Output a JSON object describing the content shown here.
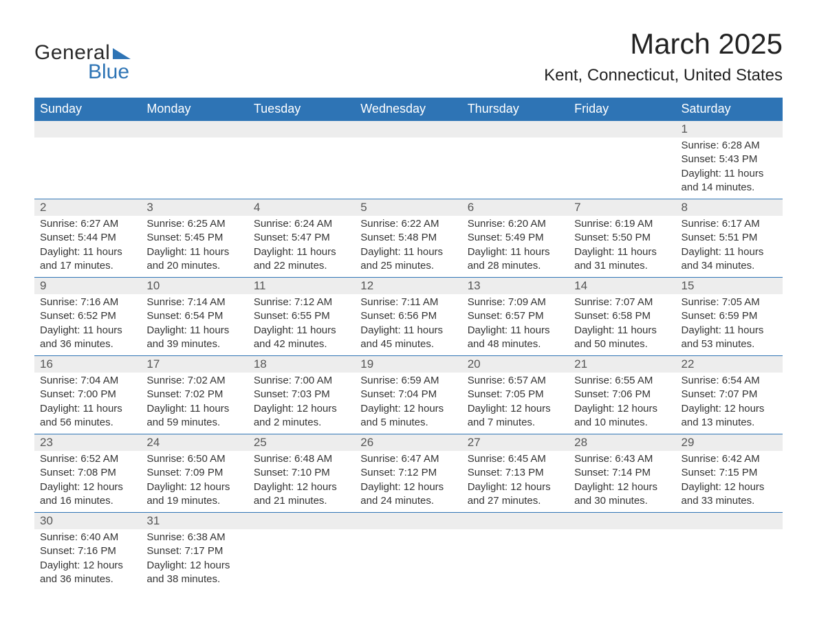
{
  "logo": {
    "general": "General",
    "blue": "Blue"
  },
  "title": "March 2025",
  "location": "Kent, Connecticut, United States",
  "headers": [
    "Sunday",
    "Monday",
    "Tuesday",
    "Wednesday",
    "Thursday",
    "Friday",
    "Saturday"
  ],
  "colors": {
    "header_bg": "#2e74b5",
    "header_text": "#ffffff",
    "daynum_bg": "#ededed",
    "border": "#2e74b5",
    "logo_blue": "#2e74b5"
  },
  "weeks": [
    [
      {
        "day": "",
        "sunrise": "",
        "sunset": "",
        "daylight": ""
      },
      {
        "day": "",
        "sunrise": "",
        "sunset": "",
        "daylight": ""
      },
      {
        "day": "",
        "sunrise": "",
        "sunset": "",
        "daylight": ""
      },
      {
        "day": "",
        "sunrise": "",
        "sunset": "",
        "daylight": ""
      },
      {
        "day": "",
        "sunrise": "",
        "sunset": "",
        "daylight": ""
      },
      {
        "day": "",
        "sunrise": "",
        "sunset": "",
        "daylight": ""
      },
      {
        "day": "1",
        "sunrise": "Sunrise: 6:28 AM",
        "sunset": "Sunset: 5:43 PM",
        "daylight": "Daylight: 11 hours and 14 minutes."
      }
    ],
    [
      {
        "day": "2",
        "sunrise": "Sunrise: 6:27 AM",
        "sunset": "Sunset: 5:44 PM",
        "daylight": "Daylight: 11 hours and 17 minutes."
      },
      {
        "day": "3",
        "sunrise": "Sunrise: 6:25 AM",
        "sunset": "Sunset: 5:45 PM",
        "daylight": "Daylight: 11 hours and 20 minutes."
      },
      {
        "day": "4",
        "sunrise": "Sunrise: 6:24 AM",
        "sunset": "Sunset: 5:47 PM",
        "daylight": "Daylight: 11 hours and 22 minutes."
      },
      {
        "day": "5",
        "sunrise": "Sunrise: 6:22 AM",
        "sunset": "Sunset: 5:48 PM",
        "daylight": "Daylight: 11 hours and 25 minutes."
      },
      {
        "day": "6",
        "sunrise": "Sunrise: 6:20 AM",
        "sunset": "Sunset: 5:49 PM",
        "daylight": "Daylight: 11 hours and 28 minutes."
      },
      {
        "day": "7",
        "sunrise": "Sunrise: 6:19 AM",
        "sunset": "Sunset: 5:50 PM",
        "daylight": "Daylight: 11 hours and 31 minutes."
      },
      {
        "day": "8",
        "sunrise": "Sunrise: 6:17 AM",
        "sunset": "Sunset: 5:51 PM",
        "daylight": "Daylight: 11 hours and 34 minutes."
      }
    ],
    [
      {
        "day": "9",
        "sunrise": "Sunrise: 7:16 AM",
        "sunset": "Sunset: 6:52 PM",
        "daylight": "Daylight: 11 hours and 36 minutes."
      },
      {
        "day": "10",
        "sunrise": "Sunrise: 7:14 AM",
        "sunset": "Sunset: 6:54 PM",
        "daylight": "Daylight: 11 hours and 39 minutes."
      },
      {
        "day": "11",
        "sunrise": "Sunrise: 7:12 AM",
        "sunset": "Sunset: 6:55 PM",
        "daylight": "Daylight: 11 hours and 42 minutes."
      },
      {
        "day": "12",
        "sunrise": "Sunrise: 7:11 AM",
        "sunset": "Sunset: 6:56 PM",
        "daylight": "Daylight: 11 hours and 45 minutes."
      },
      {
        "day": "13",
        "sunrise": "Sunrise: 7:09 AM",
        "sunset": "Sunset: 6:57 PM",
        "daylight": "Daylight: 11 hours and 48 minutes."
      },
      {
        "day": "14",
        "sunrise": "Sunrise: 7:07 AM",
        "sunset": "Sunset: 6:58 PM",
        "daylight": "Daylight: 11 hours and 50 minutes."
      },
      {
        "day": "15",
        "sunrise": "Sunrise: 7:05 AM",
        "sunset": "Sunset: 6:59 PM",
        "daylight": "Daylight: 11 hours and 53 minutes."
      }
    ],
    [
      {
        "day": "16",
        "sunrise": "Sunrise: 7:04 AM",
        "sunset": "Sunset: 7:00 PM",
        "daylight": "Daylight: 11 hours and 56 minutes."
      },
      {
        "day": "17",
        "sunrise": "Sunrise: 7:02 AM",
        "sunset": "Sunset: 7:02 PM",
        "daylight": "Daylight: 11 hours and 59 minutes."
      },
      {
        "day": "18",
        "sunrise": "Sunrise: 7:00 AM",
        "sunset": "Sunset: 7:03 PM",
        "daylight": "Daylight: 12 hours and 2 minutes."
      },
      {
        "day": "19",
        "sunrise": "Sunrise: 6:59 AM",
        "sunset": "Sunset: 7:04 PM",
        "daylight": "Daylight: 12 hours and 5 minutes."
      },
      {
        "day": "20",
        "sunrise": "Sunrise: 6:57 AM",
        "sunset": "Sunset: 7:05 PM",
        "daylight": "Daylight: 12 hours and 7 minutes."
      },
      {
        "day": "21",
        "sunrise": "Sunrise: 6:55 AM",
        "sunset": "Sunset: 7:06 PM",
        "daylight": "Daylight: 12 hours and 10 minutes."
      },
      {
        "day": "22",
        "sunrise": "Sunrise: 6:54 AM",
        "sunset": "Sunset: 7:07 PM",
        "daylight": "Daylight: 12 hours and 13 minutes."
      }
    ],
    [
      {
        "day": "23",
        "sunrise": "Sunrise: 6:52 AM",
        "sunset": "Sunset: 7:08 PM",
        "daylight": "Daylight: 12 hours and 16 minutes."
      },
      {
        "day": "24",
        "sunrise": "Sunrise: 6:50 AM",
        "sunset": "Sunset: 7:09 PM",
        "daylight": "Daylight: 12 hours and 19 minutes."
      },
      {
        "day": "25",
        "sunrise": "Sunrise: 6:48 AM",
        "sunset": "Sunset: 7:10 PM",
        "daylight": "Daylight: 12 hours and 21 minutes."
      },
      {
        "day": "26",
        "sunrise": "Sunrise: 6:47 AM",
        "sunset": "Sunset: 7:12 PM",
        "daylight": "Daylight: 12 hours and 24 minutes."
      },
      {
        "day": "27",
        "sunrise": "Sunrise: 6:45 AM",
        "sunset": "Sunset: 7:13 PM",
        "daylight": "Daylight: 12 hours and 27 minutes."
      },
      {
        "day": "28",
        "sunrise": "Sunrise: 6:43 AM",
        "sunset": "Sunset: 7:14 PM",
        "daylight": "Daylight: 12 hours and 30 minutes."
      },
      {
        "day": "29",
        "sunrise": "Sunrise: 6:42 AM",
        "sunset": "Sunset: 7:15 PM",
        "daylight": "Daylight: 12 hours and 33 minutes."
      }
    ],
    [
      {
        "day": "30",
        "sunrise": "Sunrise: 6:40 AM",
        "sunset": "Sunset: 7:16 PM",
        "daylight": "Daylight: 12 hours and 36 minutes."
      },
      {
        "day": "31",
        "sunrise": "Sunrise: 6:38 AM",
        "sunset": "Sunset: 7:17 PM",
        "daylight": "Daylight: 12 hours and 38 minutes."
      },
      {
        "day": "",
        "sunrise": "",
        "sunset": "",
        "daylight": ""
      },
      {
        "day": "",
        "sunrise": "",
        "sunset": "",
        "daylight": ""
      },
      {
        "day": "",
        "sunrise": "",
        "sunset": "",
        "daylight": ""
      },
      {
        "day": "",
        "sunrise": "",
        "sunset": "",
        "daylight": ""
      },
      {
        "day": "",
        "sunrise": "",
        "sunset": "",
        "daylight": ""
      }
    ]
  ]
}
